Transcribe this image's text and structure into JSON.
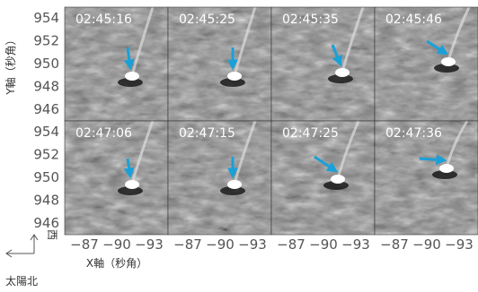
{
  "panels": [
    {
      "time": "02:45:16"
    },
    {
      "time": "02:45:25"
    },
    {
      "time": "02:45:35"
    },
    {
      "time": "02:45:46"
    },
    {
      "time": "02:47:06"
    },
    {
      "time": "02:47:15"
    },
    {
      "time": "02:47:25"
    },
    {
      "time": "02:47:36"
    }
  ],
  "y_axis": {
    "label": "Y軸（秒角）",
    "ticks": [
      "954",
      "952",
      "950",
      "948",
      "946"
    ]
  },
  "x_axis": {
    "label": "X軸（秒角）",
    "ticks": [
      "−87",
      "−90",
      "−93"
    ]
  },
  "compass": {
    "west": "西",
    "north": "太陽北"
  }
}
